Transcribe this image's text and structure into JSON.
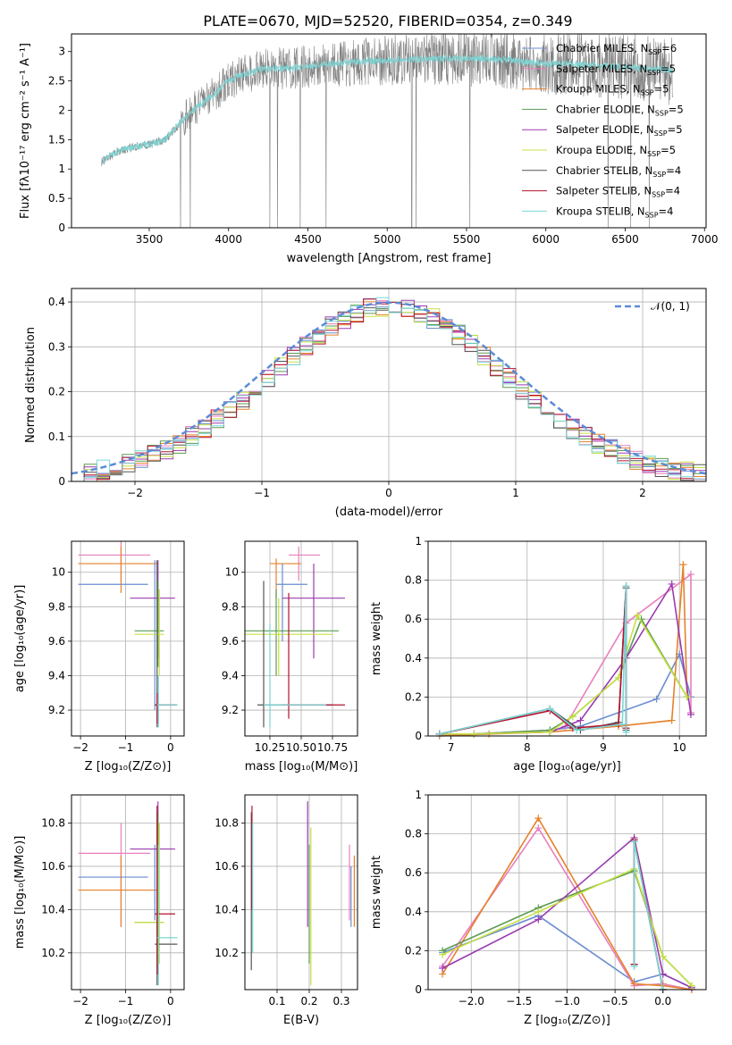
{
  "figure_title": "PLATE=0670, MJD=52520, FIBERID=0354, z=0.349",
  "legend_entries": [
    {
      "label": "Chabrier MILES, N",
      "sub": "SSP",
      "suffix": "=6",
      "color": "#6a8ecf"
    },
    {
      "label": "Salpeter MILES, N",
      "sub": "SSP",
      "suffix": "=5",
      "color": "#e87fbd"
    },
    {
      "label": "Kroupa MILES, N",
      "sub": "SSP",
      "suffix": "=5",
      "color": "#e5822b"
    },
    {
      "label": "Chabrier ELODIE, N",
      "sub": "SSP",
      "suffix": "=5",
      "color": "#5a9b52"
    },
    {
      "label": "Salpeter ELODIE, N",
      "sub": "SSP",
      "suffix": "=5",
      "color": "#9b3bb0"
    },
    {
      "label": "Kroupa ELODIE, N",
      "sub": "SSP",
      "suffix": "=5",
      "color": "#c6e044"
    },
    {
      "label": "Chabrier STELIB, N",
      "sub": "SSP",
      "suffix": "=4",
      "color": "#555555"
    },
    {
      "label": "Salpeter STELIB, N",
      "sub": "SSP",
      "suffix": "=4",
      "color": "#b5132f"
    },
    {
      "label": "Kroupa STELIB, N",
      "sub": "SSP",
      "suffix": "=4",
      "color": "#78d6d6"
    }
  ],
  "chart_data": [
    {
      "id": "spectrum",
      "type": "line",
      "xlabel": "wavelength [Angstrom, rest frame]",
      "ylabel": "Flux [fλ10⁻¹⁷ erg cm⁻² s⁻¹ A⁻¹]",
      "xlim": [
        3010,
        7010
      ],
      "ylim": [
        0,
        3.3
      ],
      "xticks": [
        3500,
        4000,
        4500,
        5000,
        5500,
        6000,
        6500,
        7000
      ],
      "yticks": [
        0.0,
        0.5,
        1.0,
        1.5,
        2.0,
        2.5,
        3.0
      ],
      "grid": false,
      "legend_position": "right",
      "observed_color": "#808080",
      "model_color": "#7fd3d3",
      "continuum": {
        "x": [
          3200,
          3300,
          3400,
          3500,
          3600,
          3700,
          3800,
          3900,
          4000,
          4100,
          4200,
          4400,
          4600,
          4800,
          5000,
          5200,
          5400,
          5600,
          5800,
          6000,
          6200,
          6400,
          6600,
          6800
        ],
        "y": [
          1.12,
          1.3,
          1.38,
          1.42,
          1.5,
          1.8,
          2.05,
          2.25,
          2.5,
          2.62,
          2.7,
          2.72,
          2.78,
          2.82,
          2.85,
          2.87,
          2.88,
          2.88,
          2.85,
          2.8,
          2.78,
          2.75,
          2.72,
          2.68
        ]
      }
    },
    {
      "id": "residuals",
      "type": "area",
      "xlabel": "(data-model)/error",
      "ylabel": "Normed distribution",
      "xlim": [
        -2.5,
        2.5
      ],
      "ylim": [
        0,
        0.43
      ],
      "xticks": [
        -2,
        -1,
        0,
        1,
        2
      ],
      "yticks": [
        0.0,
        0.1,
        0.2,
        0.3,
        0.4
      ],
      "grid": true,
      "legend_position": "top-right",
      "gaussian_label": "𝒩(0, 1)",
      "gaussian_color": "#5b8bd9"
    },
    {
      "id": "age-vs-Z",
      "type": "scatter",
      "xlabel": "Z [log₁₀(Z/Z⊙)]",
      "ylabel": "age  [log₁₀(age/yr)]",
      "xlim": [
        -2.2,
        0.3
      ],
      "ylim": [
        9.05,
        10.18
      ],
      "xticks": [
        -2,
        -1,
        0
      ],
      "yticks": [
        9.2,
        9.4,
        9.6,
        9.8,
        10.0
      ],
      "grid": true,
      "segments": [
        {
          "c": 1,
          "h": [
            -2.05,
            -0.45,
            10.1
          ],
          "v": [
            -1.1,
            9.95,
            10.18
          ]
        },
        {
          "c": 2,
          "h": [
            -2.05,
            -0.3,
            10.05
          ],
          "v": [
            -1.1,
            9.88,
            10.15
          ]
        },
        {
          "c": 0,
          "h": [
            -2.05,
            -0.5,
            9.93
          ],
          "v": [
            -0.35,
            9.2,
            10.07
          ]
        },
        {
          "c": 4,
          "h": [
            -0.9,
            0.1,
            9.85
          ],
          "v": [
            -0.28,
            9.5,
            10.07
          ]
        },
        {
          "c": 3,
          "h": [
            -0.8,
            -0.15,
            9.66
          ],
          "v": [
            -0.28,
            9.45,
            9.95
          ]
        },
        {
          "c": 5,
          "h": [
            -0.8,
            -0.15,
            9.64
          ],
          "v": [
            -0.25,
            9.4,
            9.9
          ]
        },
        {
          "c": 6,
          "h": [
            -0.35,
            0.15,
            9.23
          ],
          "v": [
            -0.3,
            9.1,
            10.07
          ]
        },
        {
          "c": 7,
          "h": [
            -0.35,
            0.1,
            9.23
          ],
          "v": [
            -0.3,
            9.12,
            9.3
          ]
        },
        {
          "c": 8,
          "h": [
            -0.3,
            0.15,
            9.23
          ],
          "v": [
            -0.27,
            9.1,
            9.4
          ]
        }
      ]
    },
    {
      "id": "age-vs-mass",
      "type": "scatter",
      "xlabel": "mass [log₁₀(M/M⊙)]",
      "ylabel": "",
      "xlim": [
        10.05,
        10.95
      ],
      "ylim": [
        9.05,
        10.18
      ],
      "xticks": [
        10.25,
        10.5,
        10.75
      ],
      "xtick_labels": [
        "10.25",
        "10.50",
        "10.75"
      ],
      "yticks": [
        9.2,
        9.4,
        9.6,
        9.8,
        10.0
      ],
      "grid": true,
      "segments": [
        {
          "c": 1,
          "h": [
            10.4,
            10.65,
            10.1
          ],
          "v": [
            10.48,
            9.95,
            10.15
          ]
        },
        {
          "c": 2,
          "h": [
            10.25,
            10.5,
            10.05
          ],
          "v": [
            10.3,
            9.85,
            10.08
          ]
        },
        {
          "c": 0,
          "h": [
            10.3,
            10.55,
            9.93
          ],
          "v": [
            10.35,
            9.6,
            10.05
          ]
        },
        {
          "c": 4,
          "h": [
            10.35,
            10.85,
            9.85
          ],
          "v": [
            10.6,
            9.5,
            10.05
          ]
        },
        {
          "c": 3,
          "h": [
            10.05,
            10.8,
            9.66
          ],
          "v": [
            10.3,
            9.4,
            9.9
          ]
        },
        {
          "c": 5,
          "h": [
            10.05,
            10.75,
            9.64
          ],
          "v": [
            10.32,
            9.4,
            9.85
          ]
        },
        {
          "c": 6,
          "h": [
            10.15,
            10.75,
            9.23
          ],
          "v": [
            10.2,
            9.1,
            9.95
          ]
        },
        {
          "c": 7,
          "h": [
            10.35,
            10.85,
            9.23
          ],
          "v": [
            10.4,
            9.15,
            9.88
          ]
        },
        {
          "c": 8,
          "h": [
            10.2,
            10.7,
            9.23
          ],
          "v": [
            10.25,
            9.1,
            9.7
          ]
        }
      ]
    },
    {
      "id": "weight-vs-age",
      "type": "line",
      "xlabel": "age  [log₁₀(age/yr)]",
      "ylabel": "mass weight",
      "xlim": [
        6.7,
        10.35
      ],
      "ylim": [
        0,
        1
      ],
      "xticks": [
        7,
        8,
        9,
        10
      ],
      "yticks": [
        0.0,
        0.2,
        0.4,
        0.6,
        0.8,
        1.0
      ],
      "grid": true,
      "series": [
        {
          "c": 0,
          "x": [
            6.85,
            7.3,
            8.3,
            8.7,
            9.7,
            10.0,
            10.15
          ],
          "y": [
            0.01,
            0.01,
            0.03,
            0.05,
            0.19,
            0.42,
            0.2
          ]
        },
        {
          "c": 1,
          "x": [
            6.85,
            7.3,
            8.3,
            8.5,
            9.3,
            10.15,
            10.15
          ],
          "y": [
            0.01,
            0.01,
            0.02,
            0.05,
            0.58,
            0.83,
            0.12
          ]
        },
        {
          "c": 2,
          "x": [
            6.85,
            7.5,
            8.3,
            9.2,
            9.9,
            10.05,
            10.1
          ],
          "y": [
            0.0,
            0.01,
            0.02,
            0.05,
            0.08,
            0.88,
            0.2
          ]
        },
        {
          "c": 3,
          "x": [
            6.85,
            7.3,
            8.3,
            8.6,
            9.2,
            9.5,
            10.1
          ],
          "y": [
            0.01,
            0.01,
            0.03,
            0.1,
            0.3,
            0.6,
            0.2
          ]
        },
        {
          "c": 4,
          "x": [
            6.85,
            7.3,
            8.3,
            8.7,
            9.3,
            9.9,
            10.15
          ],
          "y": [
            0.01,
            0.01,
            0.02,
            0.08,
            0.4,
            0.78,
            0.11
          ]
        },
        {
          "c": 5,
          "x": [
            6.85,
            7.3,
            8.3,
            8.6,
            9.2,
            9.45,
            10.1
          ],
          "y": [
            0.01,
            0.01,
            0.02,
            0.1,
            0.3,
            0.62,
            0.2
          ]
        },
        {
          "c": 6,
          "x": [
            6.85,
            8.3,
            8.7,
            9.2,
            9.3,
            9.3
          ],
          "y": [
            0.01,
            0.14,
            0.03,
            0.07,
            0.76,
            0.03
          ]
        },
        {
          "c": 7,
          "x": [
            6.85,
            8.3,
            8.6,
            9.2,
            9.3,
            9.3
          ],
          "y": [
            0.01,
            0.13,
            0.04,
            0.06,
            0.77,
            0.04
          ]
        },
        {
          "c": 8,
          "x": [
            6.85,
            8.3,
            8.65,
            9.25,
            9.3,
            9.3
          ],
          "y": [
            0.01,
            0.14,
            0.03,
            0.06,
            0.77,
            0.02
          ]
        }
      ]
    },
    {
      "id": "mass-vs-Z",
      "type": "scatter",
      "xlabel": "Z [log₁₀(Z/Z⊙)]",
      "ylabel": "mass [log₁₀(M/M⊙)]",
      "xlim": [
        -2.2,
        0.3
      ],
      "ylim": [
        10.03,
        10.93
      ],
      "xticks": [
        -2,
        -1,
        0
      ],
      "yticks": [
        10.2,
        10.4,
        10.6,
        10.8
      ],
      "grid": true,
      "segments": [
        {
          "c": 1,
          "h": [
            -2.05,
            -0.45,
            10.66
          ],
          "v": [
            -1.1,
            10.32,
            10.8
          ]
        },
        {
          "c": 2,
          "h": [
            -2.05,
            -0.3,
            10.49
          ],
          "v": [
            -1.1,
            10.32,
            10.65
          ]
        },
        {
          "c": 0,
          "h": [
            -2.05,
            -0.5,
            10.55
          ],
          "v": [
            -0.35,
            10.35,
            10.7
          ]
        },
        {
          "c": 4,
          "h": [
            -0.9,
            0.1,
            10.68
          ],
          "v": [
            -0.28,
            10.35,
            10.9
          ]
        },
        {
          "c": 3,
          "h": [
            -0.8,
            -0.15,
            10.34
          ],
          "v": [
            -0.28,
            10.1,
            10.85
          ]
        },
        {
          "c": 5,
          "h": [
            -0.8,
            -0.15,
            10.34
          ],
          "v": [
            -0.25,
            10.15,
            10.8
          ]
        },
        {
          "c": 6,
          "h": [
            -0.35,
            0.15,
            10.24
          ],
          "v": [
            -0.3,
            10.05,
            10.85
          ]
        },
        {
          "c": 7,
          "h": [
            -0.35,
            0.1,
            10.38
          ],
          "v": [
            -0.3,
            10.1,
            10.88
          ]
        },
        {
          "c": 8,
          "h": [
            -0.3,
            0.15,
            10.27
          ],
          "v": [
            -0.27,
            10.05,
            10.7
          ]
        }
      ]
    },
    {
      "id": "mass-vs-EBV",
      "type": "scatter",
      "xlabel": "E(B-V)",
      "ylabel": "",
      "xlim": [
        0.0,
        0.35
      ],
      "ylim": [
        10.03,
        10.93
      ],
      "xticks": [
        0.1,
        0.2,
        0.3
      ],
      "yticks": [
        10.2,
        10.4,
        10.6,
        10.8
      ],
      "grid": true,
      "segments": [
        {
          "c": 6,
          "v": [
            0.02,
            10.12,
            10.85
          ]
        },
        {
          "c": 7,
          "v": [
            0.022,
            10.4,
            10.88
          ]
        },
        {
          "c": 8,
          "v": [
            0.024,
            10.2,
            10.8
          ]
        },
        {
          "c": 4,
          "v": [
            0.195,
            10.32,
            10.9
          ]
        },
        {
          "c": 3,
          "v": [
            0.2,
            10.15,
            10.7
          ]
        },
        {
          "c": 5,
          "v": [
            0.205,
            10.05,
            10.78
          ]
        },
        {
          "c": 1,
          "v": [
            0.325,
            10.35,
            10.7
          ]
        },
        {
          "c": 0,
          "v": [
            0.33,
            10.32,
            10.6
          ]
        },
        {
          "c": 2,
          "v": [
            0.34,
            10.32,
            10.65
          ]
        }
      ]
    },
    {
      "id": "weight-vs-Z",
      "type": "line",
      "xlabel": "Z [log₁₀(Z/Z⊙)]",
      "ylabel": "mass weight",
      "xlim": [
        -2.45,
        0.45
      ],
      "ylim": [
        0,
        1
      ],
      "xticks": [
        -2.0,
        -1.5,
        -1.0,
        -0.5,
        0.0
      ],
      "xtick_labels": [
        "−2.0",
        "−1.5",
        "−1.0",
        "−0.5",
        "0.0"
      ],
      "yticks": [
        0.0,
        0.2,
        0.4,
        0.6,
        0.8,
        1.0
      ],
      "grid": true,
      "series": [
        {
          "c": 0,
          "x": [
            -2.3,
            -1.3,
            -0.3,
            0.0,
            0.3
          ],
          "y": [
            0.19,
            0.38,
            0.04,
            0.08,
            0.01
          ]
        },
        {
          "c": 1,
          "x": [
            -2.3,
            -1.3,
            -0.3,
            0.0,
            0.3
          ],
          "y": [
            0.12,
            0.83,
            0.02,
            0.03,
            0.0
          ]
        },
        {
          "c": 2,
          "x": [
            -2.3,
            -1.3,
            -0.3,
            0.0,
            0.3
          ],
          "y": [
            0.08,
            0.88,
            0.03,
            0.02,
            0.0
          ]
        },
        {
          "c": 3,
          "x": [
            -2.3,
            -1.3,
            -0.3,
            0.0,
            0.3
          ],
          "y": [
            0.2,
            0.42,
            0.61,
            0.17,
            0.02
          ]
        },
        {
          "c": 4,
          "x": [
            -2.3,
            -1.3,
            -0.3,
            0.0,
            0.3
          ],
          "y": [
            0.11,
            0.36,
            0.78,
            0.08,
            0.01
          ]
        },
        {
          "c": 5,
          "x": [
            -2.3,
            -1.3,
            -0.3,
            0.0,
            0.3
          ],
          "y": [
            0.18,
            0.4,
            0.62,
            0.17,
            0.02
          ]
        },
        {
          "c": 6,
          "x": [
            -0.3,
            -0.3,
            0.0
          ],
          "y": [
            0.13,
            0.76,
            0.0
          ]
        },
        {
          "c": 7,
          "x": [
            -0.3,
            -0.3,
            0.0
          ],
          "y": [
            0.13,
            0.77,
            0.0
          ]
        },
        {
          "c": 8,
          "x": [
            -0.3,
            -0.3,
            0.0
          ],
          "y": [
            0.12,
            0.76,
            0.0
          ]
        }
      ]
    }
  ]
}
